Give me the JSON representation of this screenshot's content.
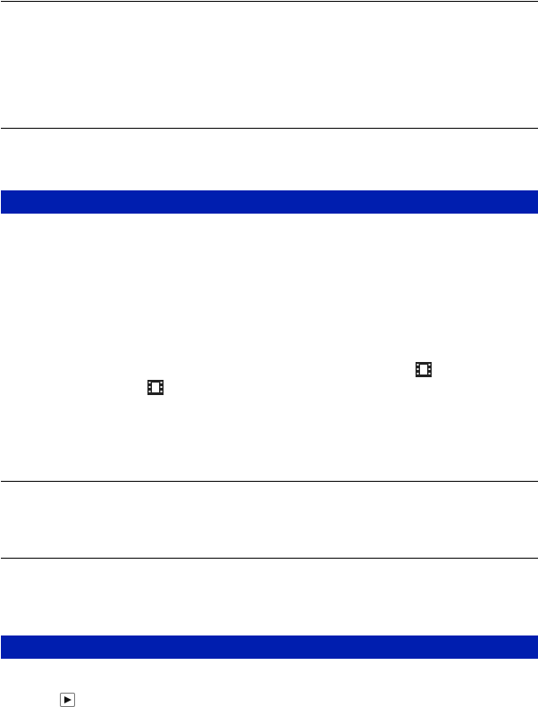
{
  "colors": {
    "section_bar": "#001EAF",
    "rule": "#000000"
  },
  "icons": {
    "movie": "film-strip-icon",
    "playback": "play-button-icon"
  }
}
